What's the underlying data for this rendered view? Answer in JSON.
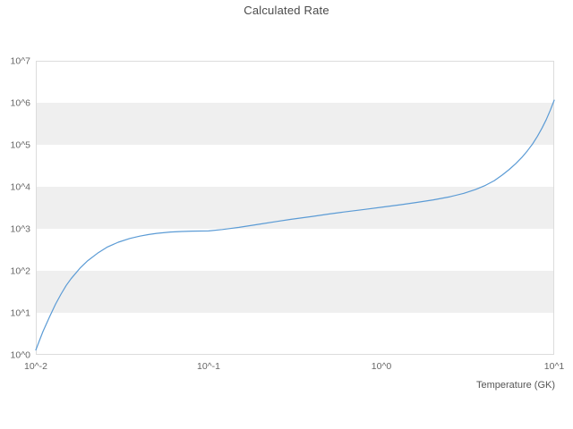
{
  "chart_data": {
    "type": "line",
    "title": "Calculated Rate",
    "xlabel": "Temperature (GK)",
    "ylabel": "",
    "x_scale": "log",
    "y_scale": "log",
    "xlim_log": [
      -2,
      1
    ],
    "ylim_log": [
      0,
      7
    ],
    "grid": "horizontal-bands",
    "legend": "none",
    "x_ticks": [
      {
        "v": 0.01,
        "label": "10^-2"
      },
      {
        "v": 0.1,
        "label": "10^-1"
      },
      {
        "v": 1,
        "label": "10^0"
      },
      {
        "v": 10,
        "label": "10^1"
      }
    ],
    "y_ticks": [
      {
        "v": 1,
        "label": "10^0"
      },
      {
        "v": 10,
        "label": "10^1"
      },
      {
        "v": 100,
        "label": "10^2"
      },
      {
        "v": 1000,
        "label": "10^3"
      },
      {
        "v": 10000,
        "label": "10^4"
      },
      {
        "v": 100000,
        "label": "10^5"
      },
      {
        "v": 1000000,
        "label": "10^6"
      },
      {
        "v": 10000000,
        "label": "10^7"
      }
    ],
    "bands": {
      "fill": "#efefef",
      "decades": [
        1,
        3,
        5
      ]
    },
    "frame_color": "#dcdcdc",
    "text_color": "#666666",
    "title_color": "#4a4a4a",
    "series": [
      {
        "name": "Calculated Rate",
        "color": "#5b9bd5",
        "points": [
          [
            0.01,
            1.3
          ],
          [
            0.0105,
            2.2
          ],
          [
            0.011,
            3.6
          ],
          [
            0.012,
            8
          ],
          [
            0.013,
            16
          ],
          [
            0.014,
            28
          ],
          [
            0.015,
            45
          ],
          [
            0.016,
            65
          ],
          [
            0.018,
            115
          ],
          [
            0.02,
            175
          ],
          [
            0.023,
            270
          ],
          [
            0.026,
            370
          ],
          [
            0.03,
            480
          ],
          [
            0.035,
            590
          ],
          [
            0.04,
            670
          ],
          [
            0.045,
            730
          ],
          [
            0.05,
            780
          ],
          [
            0.06,
            840
          ],
          [
            0.07,
            865
          ],
          [
            0.08,
            880
          ],
          [
            0.09,
            885
          ],
          [
            0.1,
            890
          ],
          [
            0.12,
            960
          ],
          [
            0.15,
            1080
          ],
          [
            0.2,
            1300
          ],
          [
            0.25,
            1500
          ],
          [
            0.3,
            1680
          ],
          [
            0.4,
            1980
          ],
          [
            0.5,
            2250
          ],
          [
            0.6,
            2500
          ],
          [
            0.8,
            2900
          ],
          [
            1.0,
            3250
          ],
          [
            1.3,
            3750
          ],
          [
            1.6,
            4250
          ],
          [
            2.0,
            4900
          ],
          [
            2.5,
            5800
          ],
          [
            3.0,
            7000
          ],
          [
            3.5,
            8600
          ],
          [
            4.0,
            10800
          ],
          [
            4.5,
            14000
          ],
          [
            5.0,
            19000
          ],
          [
            5.5,
            26000
          ],
          [
            6.0,
            36000
          ],
          [
            6.5,
            50000
          ],
          [
            7.0,
            72000
          ],
          [
            7.5,
            105000
          ],
          [
            8.0,
            160000
          ],
          [
            8.5,
            250000
          ],
          [
            9.0,
            400000
          ],
          [
            9.5,
            670000
          ],
          [
            10.0,
            1150000
          ]
        ]
      }
    ]
  }
}
